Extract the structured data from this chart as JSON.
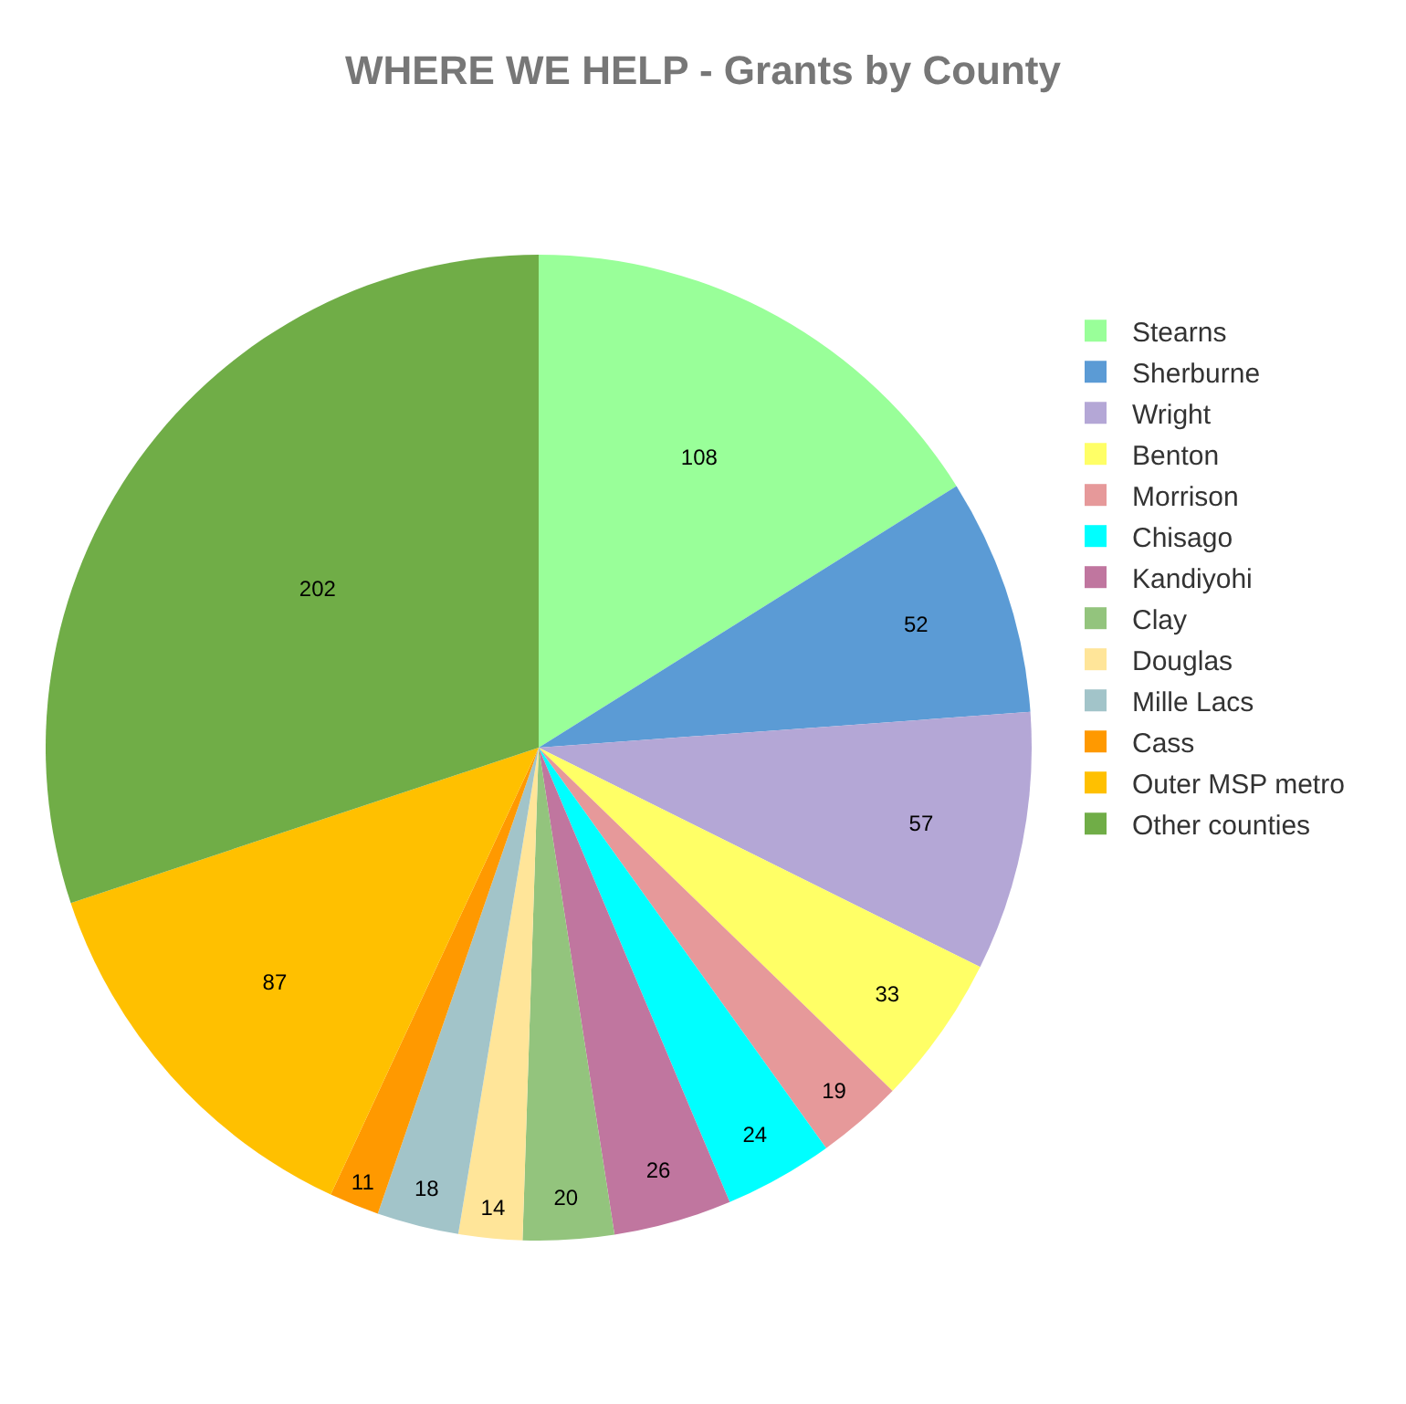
{
  "chart_data": {
    "type": "pie",
    "title": "WHERE WE HELP - Grants by County",
    "categories": [
      "Stearns",
      "Sherburne",
      "Wright",
      "Benton",
      "Morrison",
      "Chisago",
      "Kandiyohi",
      "Clay",
      "Douglas",
      "Mille Lacs",
      "Cass",
      "Outer MSP metro",
      "Other counties"
    ],
    "values": [
      108,
      52,
      57,
      33,
      19,
      24,
      26,
      20,
      14,
      18,
      11,
      87,
      202
    ],
    "colors": [
      "#99ff99",
      "#5b9bd5",
      "#b4a7d6",
      "#ffff66",
      "#e6999a",
      "#00ffff",
      "#c0769f",
      "#93c47d",
      "#ffe599",
      "#a2c4c9",
      "#ff9900",
      "#ffc000",
      "#70ad47"
    ],
    "data_labels": true,
    "legend": "right"
  }
}
